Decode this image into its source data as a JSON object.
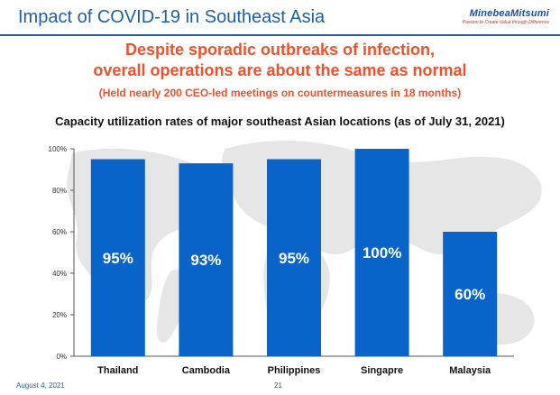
{
  "header": {
    "title": "Impact of COVID-19 in Southeast Asia",
    "logo_name": "MinebeaMitsumi",
    "logo_tagline": "Passion to Create Value through Difference"
  },
  "headline": {
    "line1": "Despite sporadic outbreaks of infection,",
    "line2": "overall operations are about the same as normal",
    "sub": "(Held nearly 200 CEO-led meetings on countermeasures in 18 months)"
  },
  "chart_data": {
    "type": "bar",
    "title": "Capacity utilization rates of major southeast Asian locations (as of July 31, 2021)",
    "categories": [
      "Thailand",
      "Cambodia",
      "Philippines",
      "Singapre",
      "Malaysia"
    ],
    "values": [
      95,
      93,
      95,
      100,
      60
    ],
    "value_labels": [
      "95%",
      "93%",
      "95%",
      "100%",
      "60%"
    ],
    "yticks": [
      "0%",
      "20%",
      "40%",
      "60%",
      "80%",
      "100%"
    ],
    "ylim": [
      0,
      100
    ],
    "bar_color": "#0a63c9",
    "grid": false,
    "legend": "none"
  },
  "footer": {
    "date": "August 4, 2021",
    "page": "21"
  }
}
